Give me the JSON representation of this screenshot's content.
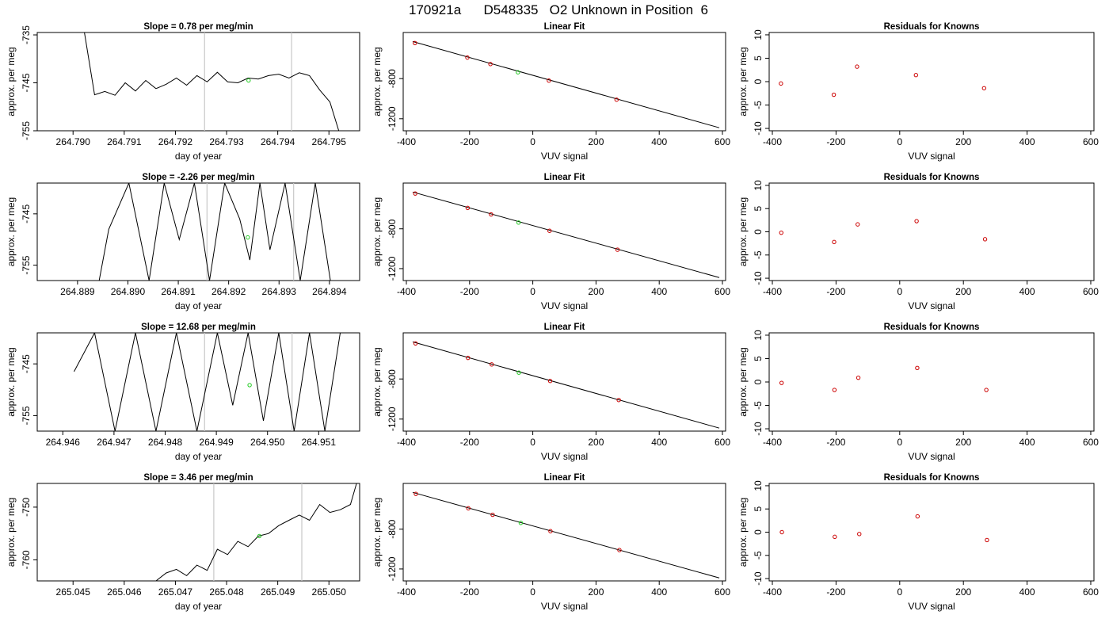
{
  "page_title": "170921a      D548335   O2 Unknown in Position  6",
  "common": {
    "ts_xlabel": "day of year",
    "ts_ylabel": "approx. per meg",
    "fit_title": "Linear Fit",
    "fit_xlabel": "VUV signal",
    "fit_ylabel": "approx. per meg",
    "res_title": "Residuals for Knowns",
    "res_xlabel": "VUV signal",
    "res_ylabel": "approx. per meg"
  },
  "rows": [
    {
      "slope_title": "Slope =  0.78  per meg/min"
    },
    {
      "slope_title": "Slope =  -2.26  per meg/min"
    },
    {
      "slope_title": "Slope =  12.68  per meg/min"
    },
    {
      "slope_title": "Slope =  3.46  per meg/min"
    }
  ],
  "colors": {
    "line": "#000000",
    "known_points": "#cc0000",
    "unknown_point": "#22cc22",
    "marker_lines": "#c8c8c8"
  },
  "chart_data": [
    {
      "type": "line",
      "row": 0,
      "title": "Slope =  0.78  per meg/min",
      "xlabel": "day of year",
      "ylabel": "approx. per meg",
      "xlim": [
        264.7893,
        264.7956
      ],
      "ylim": [
        -755,
        -734.5
      ],
      "xticks": [
        "264.790",
        "264.791",
        "264.792",
        "264.793",
        "264.794",
        "264.795"
      ],
      "yticks": [
        "-755",
        "-745",
        "-735"
      ],
      "marker_x": [
        264.79257,
        264.79427
      ],
      "unknown_point": {
        "x": 264.79343,
        "y": -744.5
      },
      "x": [
        264.7902,
        264.79042,
        264.79062,
        264.79082,
        264.79102,
        264.79122,
        264.79142,
        264.79162,
        264.79182,
        264.79202,
        264.79222,
        264.79242,
        264.79262,
        264.79282,
        264.79302,
        264.79322,
        264.79342,
        264.79362,
        264.79382,
        264.79402,
        264.79422,
        264.79442,
        264.79462,
        264.79482,
        264.79502,
        264.79522
      ],
      "y": [
        -733,
        -747.5,
        -746.8,
        -747.6,
        -745,
        -746.7,
        -744.5,
        -746.2,
        -745.3,
        -744,
        -745.5,
        -743.5,
        -744.8,
        -742.8,
        -744.8,
        -745,
        -744,
        -744.2,
        -743.5,
        -743.2,
        -744,
        -742.9,
        -743.5,
        -746.5,
        -749,
        -756
      ]
    },
    {
      "type": "line",
      "row": 1,
      "title": "Slope =  -2.26  per meg/min",
      "xlabel": "day of year",
      "ylabel": "approx. per meg",
      "xlim": [
        264.8882,
        264.8946
      ],
      "ylim": [
        -758,
        -739
      ],
      "xticks": [
        "264.889",
        "264.890",
        "264.891",
        "264.892",
        "264.893",
        "264.894"
      ],
      "yticks": [
        "-755",
        "-745"
      ],
      "marker_x": [
        264.89157,
        264.89329
      ],
      "unknown_point": {
        "x": 264.89238,
        "y": -749.6
      },
      "x": [
        264.88943,
        264.88962,
        264.89002,
        264.89042,
        264.89072,
        264.89102,
        264.89132,
        264.89162,
        264.89192,
        264.89222,
        264.89242,
        264.89262,
        264.89282,
        264.89312,
        264.89342,
        264.89372,
        264.89402,
        264.89417
      ],
      "y": [
        -758,
        -748,
        -739,
        -758,
        -739,
        -750,
        -739,
        -758,
        -739,
        -746,
        -754,
        -739,
        -752,
        -739,
        -758,
        -739,
        -758,
        -758
      ]
    },
    {
      "type": "line",
      "row": 2,
      "title": "Slope =  12.68  per meg/min",
      "xlabel": "day of year",
      "ylabel": "approx. per meg",
      "xlim": [
        264.9455,
        264.9518
      ],
      "ylim": [
        -758,
        -739
      ],
      "xticks": [
        "264.946",
        "264.947",
        "264.948",
        "264.949",
        "264.950",
        "264.951"
      ],
      "yticks": [
        "-755",
        "-745"
      ],
      "marker_x": [
        264.94877,
        264.95048
      ],
      "unknown_point": {
        "x": 264.94965,
        "y": -749.1
      },
      "x": [
        264.94622,
        264.94662,
        264.94702,
        264.94742,
        264.94782,
        264.94822,
        264.94862,
        264.94902,
        264.94932,
        264.94962,
        264.94992,
        264.95022,
        264.95052,
        264.95082,
        264.95112,
        264.95142
      ],
      "y": [
        -746.5,
        -739,
        -758,
        -739,
        -758,
        -739,
        -758,
        -739,
        -753,
        -739,
        -756,
        -739,
        -758,
        -739,
        -758,
        -739
      ]
    },
    {
      "type": "line",
      "row": 3,
      "title": "Slope =  3.46  per meg/min",
      "xlabel": "day of year",
      "ylabel": "approx. per meg",
      "xlim": [
        265.0443,
        265.0506
      ],
      "ylim": [
        -764,
        -745.5
      ],
      "xticks": [
        "265.045",
        "265.046",
        "265.047",
        "265.048",
        "265.049",
        "265.050"
      ],
      "yticks": [
        "-760",
        "-750"
      ],
      "marker_x": [
        265.04775,
        265.04947
      ],
      "unknown_point": {
        "x": 265.04864,
        "y": -755.5
      },
      "x": [
        265.04662,
        265.04682,
        265.04702,
        265.04722,
        265.04742,
        265.04762,
        265.04782,
        265.04802,
        265.04822,
        265.04842,
        265.04862,
        265.04882,
        265.04902,
        265.04922,
        265.04942,
        265.04962,
        265.04982,
        265.05002,
        265.05022,
        265.05042,
        265.05054
      ],
      "y": [
        -764,
        -762.5,
        -761.8,
        -763,
        -761,
        -762,
        -758,
        -759,
        -756.5,
        -757.5,
        -755.5,
        -755,
        -753.5,
        -752.5,
        -751.5,
        -752.5,
        -749.5,
        -751,
        -750.5,
        -749.5,
        -745.5
      ]
    },
    {
      "type": "scatter",
      "row": 0,
      "title": "Linear Fit",
      "xlabel": "VUV signal",
      "ylabel": "approx. per meg",
      "xlim": [
        -410,
        610
      ],
      "ylim": [
        -1320,
        -340
      ],
      "xticks": [
        "-400",
        "-200",
        "0",
        "200",
        "400",
        "600"
      ],
      "yticks": [
        "-800",
        "-1200"
      ],
      "fit_line": {
        "x": [
          -380,
          590
        ],
        "y": [
          -430,
          -1290
        ]
      },
      "known": {
        "x": [
          -373,
          -207,
          -134,
          51,
          265
        ],
        "y": [
          -445,
          -590,
          -655,
          -820,
          -1010
        ]
      },
      "unknown": {
        "x": -47,
        "y": -737
      }
    },
    {
      "type": "scatter",
      "row": 1,
      "title": "Linear Fit",
      "xlabel": "VUV signal",
      "ylabel": "approx. per meg",
      "xlim": [
        -410,
        610
      ],
      "ylim": [
        -1320,
        -340
      ],
      "xticks": [
        "-400",
        "-200",
        "0",
        "200",
        "400",
        "600"
      ],
      "yticks": [
        "-800",
        "-1200"
      ],
      "fit_line": {
        "x": [
          -380,
          590
        ],
        "y": [
          -430,
          -1290
        ]
      },
      "known": {
        "x": [
          -372,
          -206,
          -132,
          53,
          268
        ],
        "y": [
          -445,
          -590,
          -655,
          -820,
          -1010
        ]
      },
      "unknown": {
        "x": -45,
        "y": -737
      }
    },
    {
      "type": "scatter",
      "row": 2,
      "title": "Linear Fit",
      "xlabel": "VUV signal",
      "ylabel": "approx. per meg",
      "xlim": [
        -410,
        610
      ],
      "ylim": [
        -1320,
        -340
      ],
      "xticks": [
        "-400",
        "-200",
        "0",
        "200",
        "400",
        "600"
      ],
      "yticks": [
        "-800",
        "-1200"
      ],
      "fit_line": {
        "x": [
          -380,
          590
        ],
        "y": [
          -430,
          -1290
        ]
      },
      "known": {
        "x": [
          -371,
          -205,
          -130,
          55,
          272
        ],
        "y": [
          -445,
          -590,
          -655,
          -820,
          -1010
        ]
      },
      "unknown": {
        "x": -44,
        "y": -737
      }
    },
    {
      "type": "scatter",
      "row": 3,
      "title": "Linear Fit",
      "xlabel": "VUV signal",
      "ylabel": "approx. per meg",
      "xlim": [
        -410,
        610
      ],
      "ylim": [
        -1320,
        -340
      ],
      "xticks": [
        "-400",
        "-200",
        "0",
        "200",
        "400",
        "600"
      ],
      "yticks": [
        "-800",
        "-1200"
      ],
      "fit_line": {
        "x": [
          -380,
          590
        ],
        "y": [
          -430,
          -1290
        ]
      },
      "known": {
        "x": [
          -370,
          -204,
          -127,
          56,
          274
        ],
        "y": [
          -445,
          -590,
          -655,
          -820,
          -1010
        ]
      },
      "unknown": {
        "x": -38,
        "y": -737
      }
    },
    {
      "type": "scatter",
      "row": 0,
      "title": "Residuals for Knowns",
      "xlabel": "VUV signal",
      "ylabel": "approx. per meg",
      "xlim": [
        -410,
        610
      ],
      "ylim": [
        -10.5,
        10.5
      ],
      "xticks": [
        "-400",
        "-200",
        "0",
        "200",
        "400",
        "600"
      ],
      "yticks": [
        "-10",
        "-5",
        "0",
        "5",
        "10"
      ],
      "x": [
        -373,
        -207,
        -134,
        51,
        265
      ],
      "y": [
        -0.4,
        -2.8,
        3.2,
        1.4,
        -1.4
      ]
    },
    {
      "type": "scatter",
      "row": 1,
      "title": "Residuals for Knowns",
      "xlabel": "VUV signal",
      "ylabel": "approx. per meg",
      "xlim": [
        -410,
        610
      ],
      "ylim": [
        -10.5,
        10.5
      ],
      "xticks": [
        "-400",
        "-200",
        "0",
        "200",
        "400",
        "600"
      ],
      "yticks": [
        "-10",
        "-5",
        "0",
        "5",
        "10"
      ],
      "x": [
        -372,
        -206,
        -132,
        53,
        268
      ],
      "y": [
        -0.2,
        -2.2,
        1.6,
        2.3,
        -1.6
      ]
    },
    {
      "type": "scatter",
      "row": 2,
      "title": "Residuals for Knowns",
      "xlabel": "VUV signal",
      "ylabel": "approx. per meg",
      "xlim": [
        -410,
        610
      ],
      "ylim": [
        -10.5,
        10.5
      ],
      "xticks": [
        "-400",
        "-200",
        "0",
        "200",
        "400",
        "600"
      ],
      "yticks": [
        "-10",
        "-5",
        "0",
        "5",
        "10"
      ],
      "x": [
        -371,
        -205,
        -130,
        55,
        272
      ],
      "y": [
        -0.2,
        -1.7,
        0.9,
        3.0,
        -1.7
      ]
    },
    {
      "type": "scatter",
      "row": 3,
      "title": "Residuals for Knowns",
      "xlabel": "VUV signal",
      "ylabel": "approx. per meg",
      "xlim": [
        -410,
        610
      ],
      "ylim": [
        -10.5,
        10.5
      ],
      "xticks": [
        "-400",
        "-200",
        "0",
        "200",
        "400",
        "600"
      ],
      "yticks": [
        "-10",
        "-5",
        "0",
        "5",
        "10"
      ],
      "x": [
        -370,
        -204,
        -127,
        56,
        274
      ],
      "y": [
        0.0,
        -1.0,
        -0.4,
        3.4,
        -1.7
      ]
    }
  ]
}
